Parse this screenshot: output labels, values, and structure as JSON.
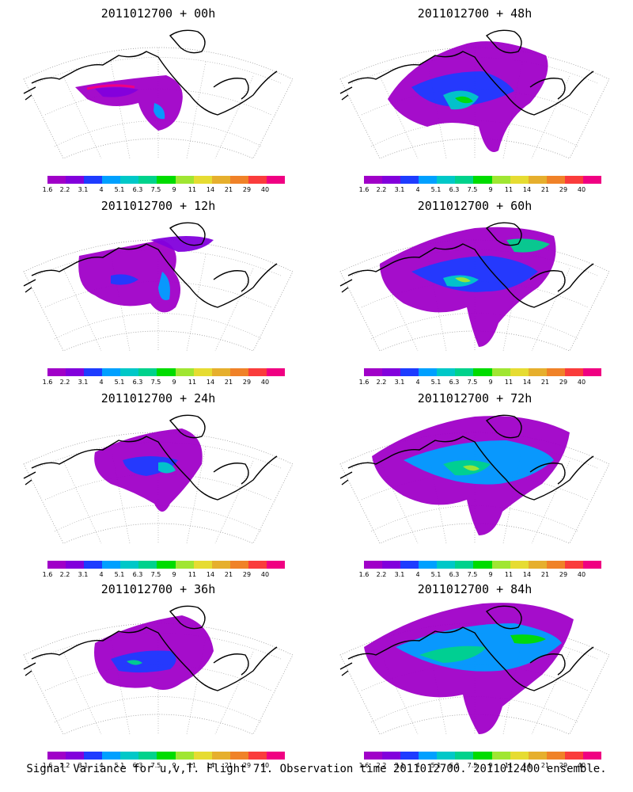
{
  "panels": [
    {
      "title": "2011012700 + 00h",
      "intensity": 0
    },
    {
      "title": "2011012700 + 48h",
      "intensity": 4
    },
    {
      "title": "2011012700 + 12h",
      "intensity": 1
    },
    {
      "title": "2011012700 + 60h",
      "intensity": 5
    },
    {
      "title": "2011012700 + 24h",
      "intensity": 2
    },
    {
      "title": "2011012700 + 72h",
      "intensity": 6
    },
    {
      "title": "2011012700 + 36h",
      "intensity": 3
    },
    {
      "title": "2011012700 + 84h",
      "intensity": 7
    }
  ],
  "colorbar": {
    "labels": [
      "1.6",
      "2.2",
      "3.1",
      "4",
      "5.1",
      "6.3",
      "7.5",
      "9",
      "11",
      "14",
      "21",
      "29",
      "40"
    ],
    "colors": [
      "#a000c8",
      "#8200dc",
      "#1e3cff",
      "#00a0ff",
      "#00c8c8",
      "#00d28c",
      "#00dc00",
      "#a0e632",
      "#e6dc32",
      "#e6af2d",
      "#f08228",
      "#fa3c3c",
      "#f00082"
    ]
  },
  "caption": "Signal Variance for u,v,T. Flight 71. Observation time 2011012700. 2011012400 ensemble."
}
